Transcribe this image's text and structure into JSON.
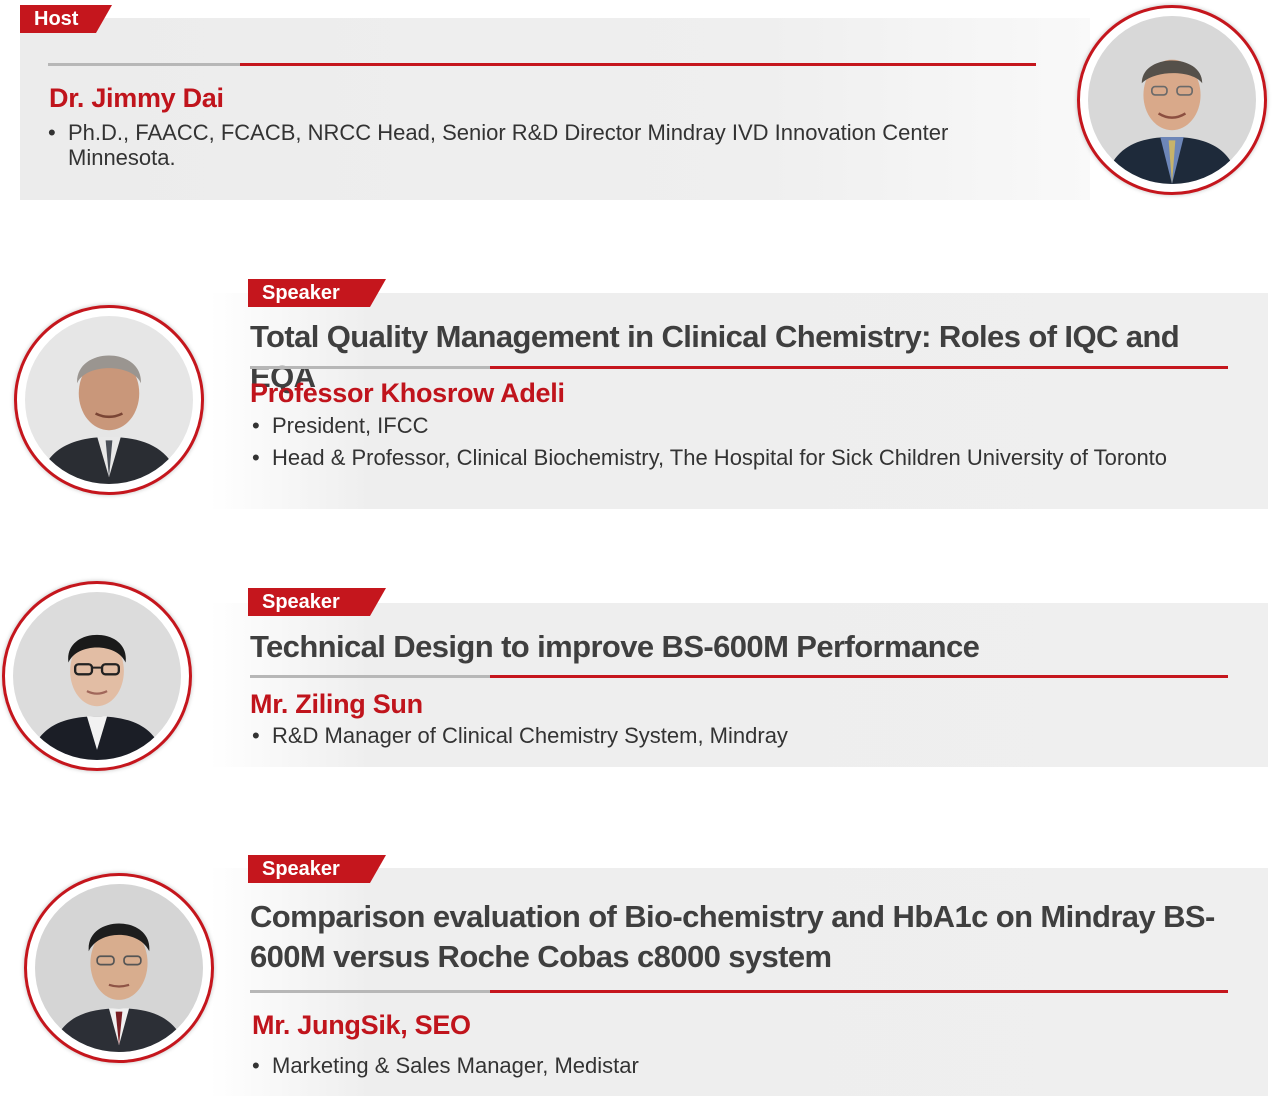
{
  "host": {
    "tag": "Host",
    "name": "Dr. Jimmy Dai",
    "bullets": [
      "Ph.D., FAACC, FCACB, NRCC Head, Senior R&D Director Mindray IVD Innovation Center Minnesota."
    ]
  },
  "speakers": [
    {
      "tag": "Speaker",
      "topic": "Total Quality Management in Clinical Chemistry: Roles of IQC and EQA",
      "name": "Professor Khosrow Adeli",
      "bullets": [
        "President, IFCC",
        "Head & Professor, Clinical Biochemistry, The Hospital for Sick Children University of Toronto"
      ]
    },
    {
      "tag": "Speaker",
      "topic": "Technical Design to improve BS-600M Performance",
      "name": "Mr. Ziling Sun",
      "bullets": [
        "R&D Manager of Clinical Chemistry System, Mindray"
      ]
    },
    {
      "tag": "Speaker",
      "topic": "Comparison evaluation of Bio-chemistry and HbA1c on Mindray BS-600M versus Roche Cobas c8000 system",
      "name": "Mr. JungSik, SEO",
      "bullets": [
        "Marketing & Sales Manager, Medistar"
      ]
    }
  ],
  "colors": {
    "accent": "#c5161d",
    "name": "#c0141c",
    "topic": "#3f3f3f",
    "card": "#eeeeee"
  },
  "bullet_glyph": "•",
  "photos": [
    "man-portrait-icon",
    "man-portrait-icon",
    "man-portrait-icon",
    "man-portrait-icon"
  ]
}
